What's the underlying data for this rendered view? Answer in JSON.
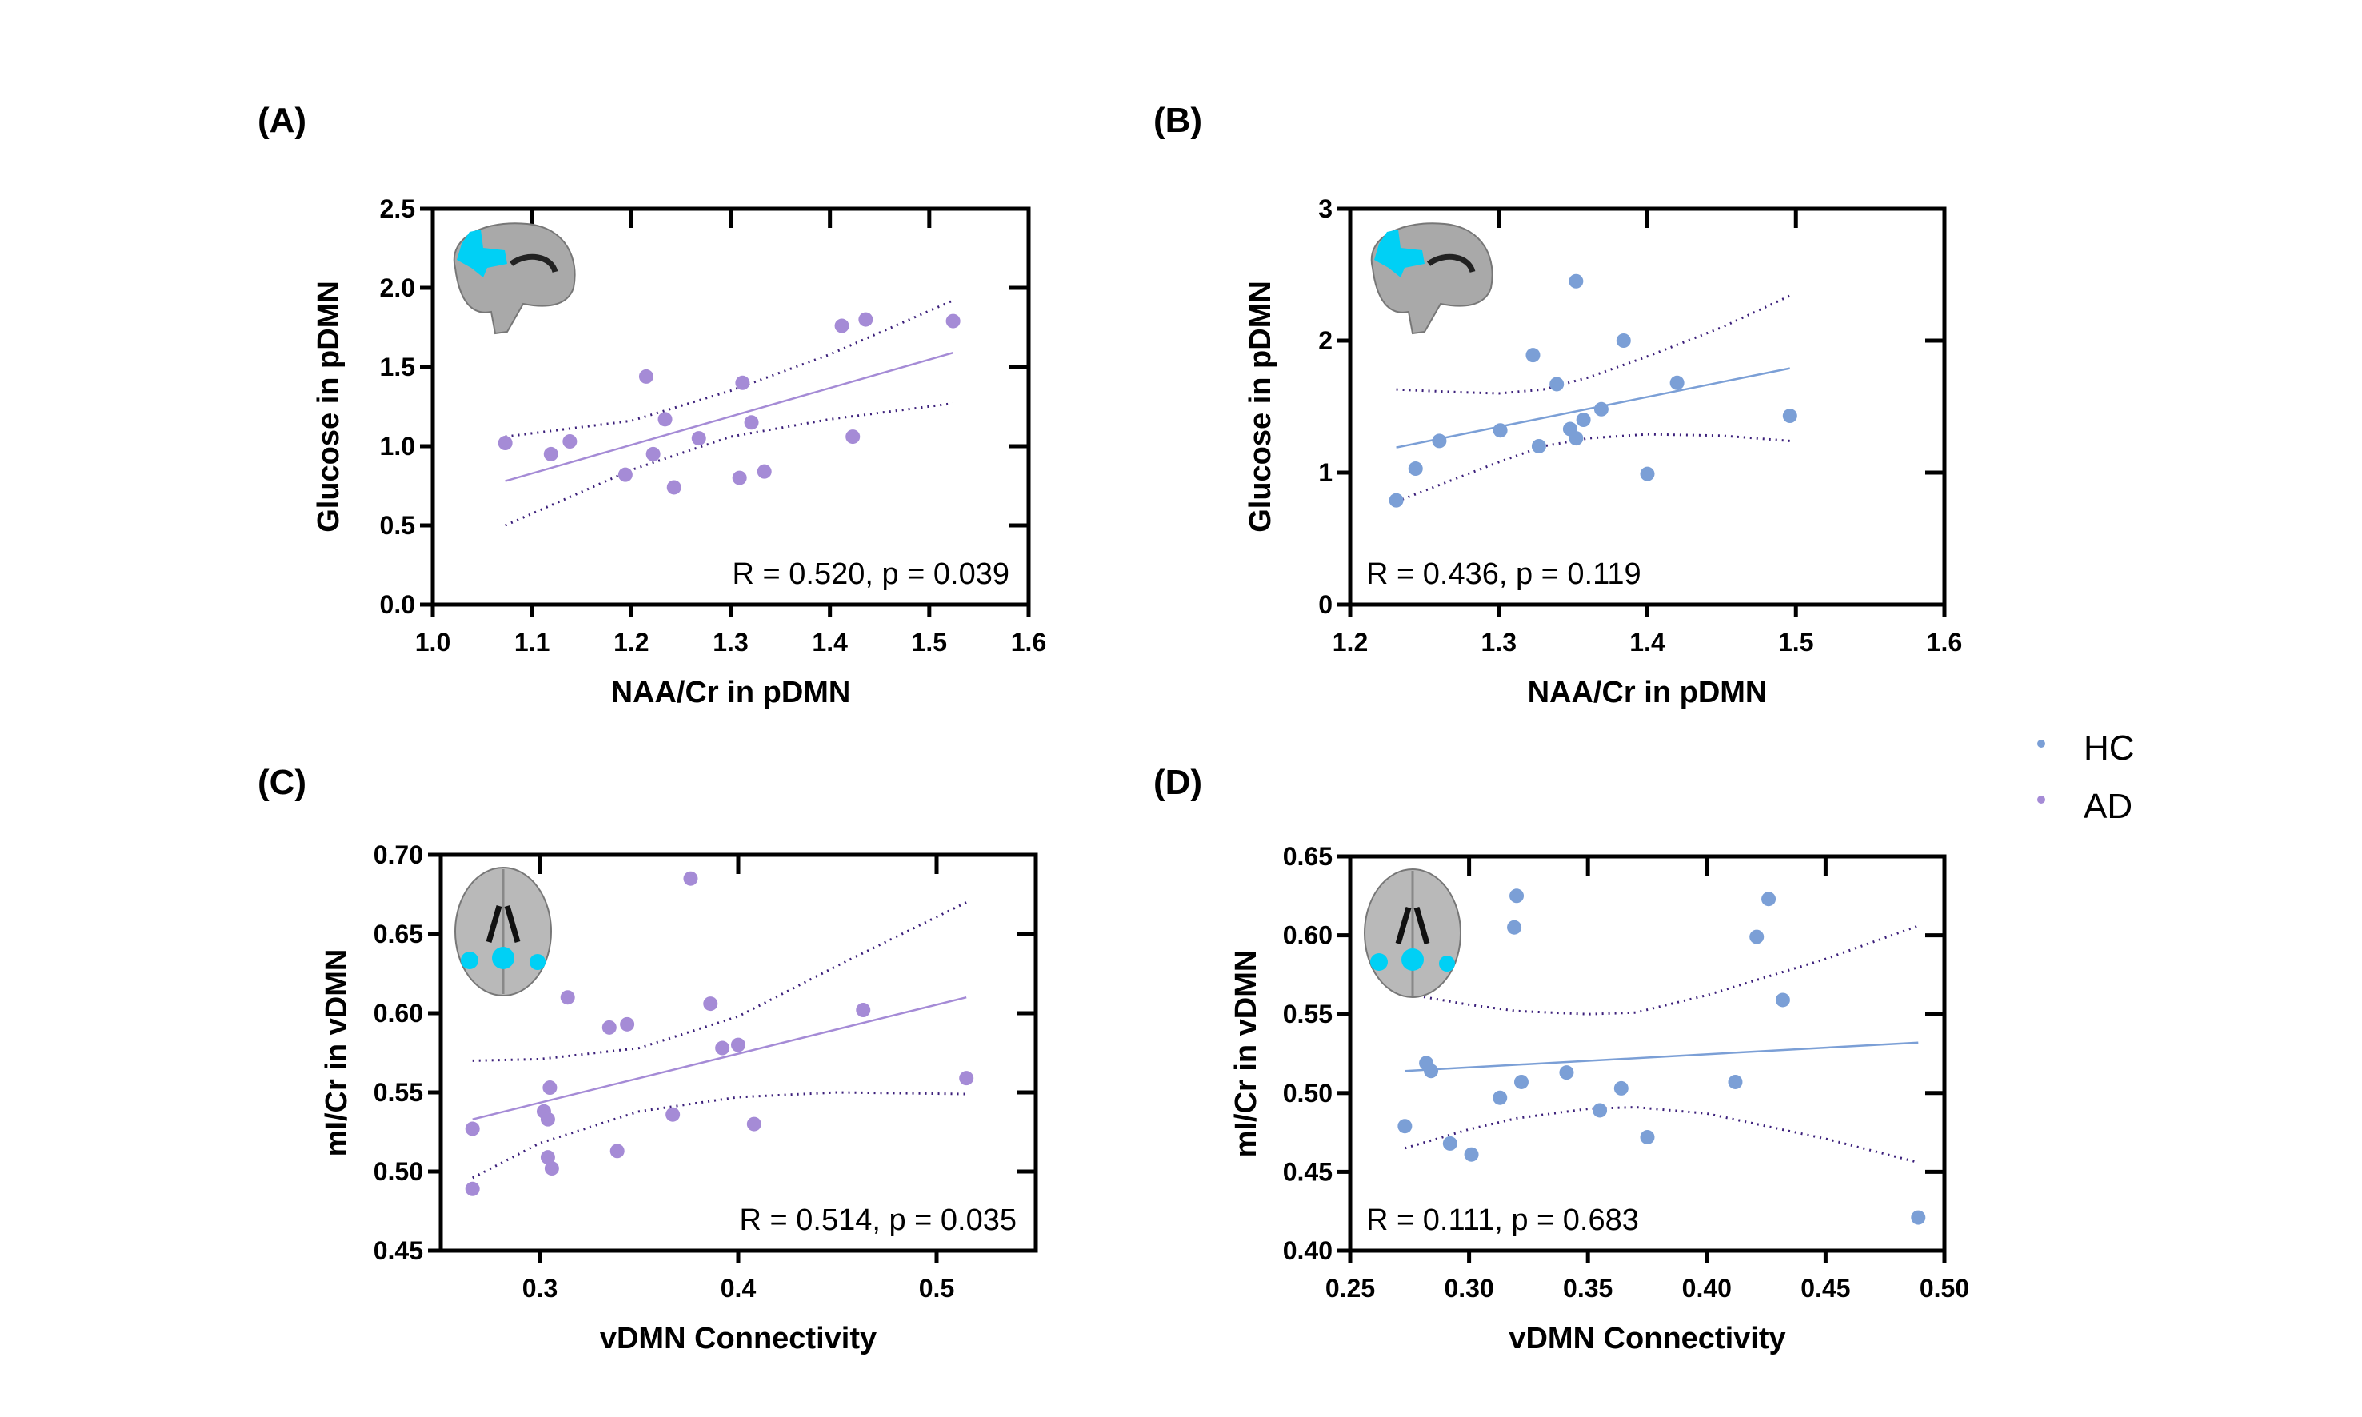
{
  "colors": {
    "HC": "#7b9fd6",
    "AD": "#a58bd6",
    "ci": "#3b1f7a",
    "roi": "#00d0f5"
  },
  "legend": [
    {
      "label": "HC",
      "color": "#7b9fd6"
    },
    {
      "label": "AD",
      "color": "#a58bd6"
    }
  ],
  "chart_data": [
    {
      "panel": "(A)",
      "type": "scatter",
      "group": "AD",
      "brain_icon": "sagittal-brain-icon",
      "xlabel": "NAA/Cr in pDMN",
      "ylabel": "Glucose in pDMN",
      "xlim": [
        1.0,
        1.6
      ],
      "ylim": [
        0.0,
        2.5
      ],
      "xticks": [
        "1.0",
        "1.1",
        "1.2",
        "1.3",
        "1.4",
        "1.5",
        "1.6"
      ],
      "yticks": [
        "0.0",
        "0.5",
        "1.0",
        "1.5",
        "2.0",
        "2.5"
      ],
      "stat": "R = 0.520, p = 0.039",
      "points": [
        [
          1.073,
          1.02
        ],
        [
          1.119,
          0.95
        ],
        [
          1.138,
          1.03
        ],
        [
          1.194,
          0.82
        ],
        [
          1.215,
          1.44
        ],
        [
          1.222,
          0.95
        ],
        [
          1.234,
          1.17
        ],
        [
          1.243,
          0.74
        ],
        [
          1.268,
          1.05
        ],
        [
          1.309,
          0.8
        ],
        [
          1.312,
          1.4
        ],
        [
          1.321,
          1.15
        ],
        [
          1.334,
          0.84
        ],
        [
          1.412,
          1.76
        ],
        [
          1.423,
          1.06
        ],
        [
          1.436,
          1.8
        ],
        [
          1.524,
          1.79
        ]
      ],
      "fit": [
        [
          1.073,
          0.78
        ],
        [
          1.524,
          1.59
        ]
      ],
      "ci_upper": [
        [
          1.073,
          1.06
        ],
        [
          1.2,
          1.16
        ],
        [
          1.3,
          1.35
        ],
        [
          1.4,
          1.58
        ],
        [
          1.524,
          1.92
        ]
      ],
      "ci_lower": [
        [
          1.073,
          0.5
        ],
        [
          1.2,
          0.85
        ],
        [
          1.3,
          1.06
        ],
        [
          1.4,
          1.17
        ],
        [
          1.524,
          1.27
        ]
      ]
    },
    {
      "panel": "(B)",
      "type": "scatter",
      "group": "HC",
      "brain_icon": "sagittal-brain-icon",
      "xlabel": "NAA/Cr in pDMN",
      "ylabel": "Glucose in pDMN",
      "xlim": [
        1.2,
        1.6
      ],
      "ylim": [
        0,
        3
      ],
      "xticks": [
        "1.2",
        "1.3",
        "1.4",
        "1.5",
        "1.6"
      ],
      "yticks": [
        "0",
        "1",
        "2",
        "3"
      ],
      "stat": "R = 0.436, p = 0.119",
      "points": [
        [
          1.231,
          0.79
        ],
        [
          1.244,
          1.03
        ],
        [
          1.26,
          1.24
        ],
        [
          1.301,
          1.32
        ],
        [
          1.323,
          1.89
        ],
        [
          1.327,
          1.2
        ],
        [
          1.339,
          1.67
        ],
        [
          1.348,
          1.33
        ],
        [
          1.352,
          2.45
        ],
        [
          1.352,
          1.26
        ],
        [
          1.357,
          1.4
        ],
        [
          1.369,
          1.48
        ],
        [
          1.384,
          2.0
        ],
        [
          1.4,
          0.99
        ],
        [
          1.42,
          1.68
        ],
        [
          1.496,
          1.43
        ]
      ],
      "fit": [
        [
          1.231,
          1.19
        ],
        [
          1.496,
          1.79
        ]
      ],
      "ci_upper": [
        [
          1.231,
          1.63
        ],
        [
          1.27,
          1.61
        ],
        [
          1.3,
          1.6
        ],
        [
          1.33,
          1.63
        ],
        [
          1.36,
          1.72
        ],
        [
          1.4,
          1.88
        ],
        [
          1.45,
          2.1
        ],
        [
          1.496,
          2.34
        ]
      ],
      "ci_lower": [
        [
          1.231,
          0.78
        ],
        [
          1.27,
          0.95
        ],
        [
          1.3,
          1.08
        ],
        [
          1.33,
          1.2
        ],
        [
          1.36,
          1.26
        ],
        [
          1.4,
          1.29
        ],
        [
          1.45,
          1.28
        ],
        [
          1.496,
          1.24
        ]
      ]
    },
    {
      "panel": "(C)",
      "type": "scatter",
      "group": "AD",
      "brain_icon": "axial-brain-icon",
      "xlabel": "vDMN Connectivity",
      "ylabel": "mI/Cr in vDMN",
      "xlim": [
        0.25,
        0.55
      ],
      "ylim": [
        0.45,
        0.7
      ],
      "xticks": [
        "0.3",
        "0.4",
        "0.5"
      ],
      "xtick_values": [
        0.3,
        0.4,
        0.5
      ],
      "yticks": [
        "0.45",
        "0.50",
        "0.55",
        "0.60",
        "0.65",
        "0.70"
      ],
      "stat": "R = 0.514, p = 0.035",
      "points": [
        [
          0.266,
          0.527
        ],
        [
          0.266,
          0.489
        ],
        [
          0.302,
          0.538
        ],
        [
          0.304,
          0.533
        ],
        [
          0.304,
          0.509
        ],
        [
          0.305,
          0.553
        ],
        [
          0.306,
          0.502
        ],
        [
          0.314,
          0.61
        ],
        [
          0.335,
          0.591
        ],
        [
          0.339,
          0.513
        ],
        [
          0.344,
          0.593
        ],
        [
          0.367,
          0.536
        ],
        [
          0.376,
          0.685
        ],
        [
          0.386,
          0.606
        ],
        [
          0.392,
          0.578
        ],
        [
          0.4,
          0.58
        ],
        [
          0.408,
          0.53
        ],
        [
          0.463,
          0.602
        ],
        [
          0.515,
          0.559
        ]
      ],
      "fit": [
        [
          0.266,
          0.533
        ],
        [
          0.515,
          0.61
        ]
      ],
      "ci_upper": [
        [
          0.266,
          0.57
        ],
        [
          0.3,
          0.571
        ],
        [
          0.35,
          0.578
        ],
        [
          0.4,
          0.598
        ],
        [
          0.45,
          0.63
        ],
        [
          0.515,
          0.67
        ]
      ],
      "ci_lower": [
        [
          0.266,
          0.496
        ],
        [
          0.3,
          0.518
        ],
        [
          0.35,
          0.538
        ],
        [
          0.4,
          0.547
        ],
        [
          0.45,
          0.55
        ],
        [
          0.515,
          0.549
        ]
      ]
    },
    {
      "panel": "(D)",
      "type": "scatter",
      "group": "HC",
      "brain_icon": "axial-brain-icon",
      "xlabel": "vDMN Connectivity",
      "ylabel": "mI/Cr in vDMN",
      "xlim": [
        0.25,
        0.5
      ],
      "ylim": [
        0.4,
        0.65
      ],
      "xticks": [
        "0.25",
        "0.30",
        "0.35",
        "0.40",
        "0.45",
        "0.50"
      ],
      "yticks": [
        "0.40",
        "0.45",
        "0.50",
        "0.55",
        "0.60",
        "0.65"
      ],
      "stat": "R = 0.111, p = 0.683",
      "points": [
        [
          0.273,
          0.479
        ],
        [
          0.282,
          0.519
        ],
        [
          0.284,
          0.514
        ],
        [
          0.292,
          0.468
        ],
        [
          0.301,
          0.461
        ],
        [
          0.313,
          0.497
        ],
        [
          0.319,
          0.605
        ],
        [
          0.32,
          0.625
        ],
        [
          0.322,
          0.507
        ],
        [
          0.341,
          0.513
        ],
        [
          0.355,
          0.489
        ],
        [
          0.364,
          0.503
        ],
        [
          0.375,
          0.472
        ],
        [
          0.412,
          0.507
        ],
        [
          0.421,
          0.599
        ],
        [
          0.426,
          0.623
        ],
        [
          0.432,
          0.559
        ],
        [
          0.489,
          0.421
        ]
      ],
      "fit": [
        [
          0.273,
          0.514
        ],
        [
          0.489,
          0.532
        ]
      ],
      "ci_upper": [
        [
          0.273,
          0.563
        ],
        [
          0.3,
          0.556
        ],
        [
          0.32,
          0.552
        ],
        [
          0.35,
          0.55
        ],
        [
          0.37,
          0.551
        ],
        [
          0.4,
          0.562
        ],
        [
          0.45,
          0.585
        ],
        [
          0.489,
          0.606
        ]
      ],
      "ci_lower": [
        [
          0.273,
          0.465
        ],
        [
          0.3,
          0.477
        ],
        [
          0.32,
          0.484
        ],
        [
          0.35,
          0.49
        ],
        [
          0.37,
          0.491
        ],
        [
          0.4,
          0.487
        ],
        [
          0.45,
          0.471
        ],
        [
          0.489,
          0.456
        ]
      ]
    }
  ]
}
